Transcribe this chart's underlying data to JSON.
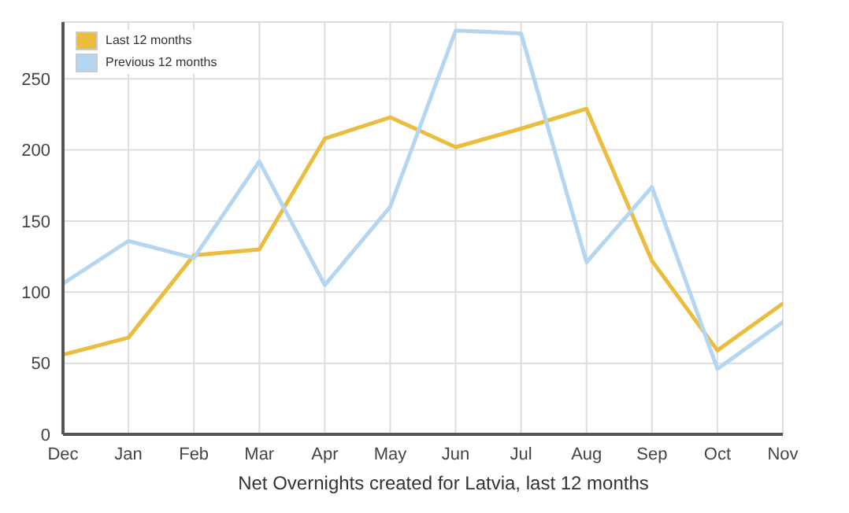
{
  "chart_data": {
    "type": "line",
    "categories": [
      "Dec",
      "Jan",
      "Feb",
      "Mar",
      "Apr",
      "May",
      "Jun",
      "Jul",
      "Aug",
      "Sep",
      "Oct",
      "Nov"
    ],
    "series": [
      {
        "name": "Last 12 months",
        "color": "#ebbd3f",
        "values": [
          56,
          68,
          126,
          130,
          208,
          223,
          202,
          215,
          229,
          122,
          59,
          92
        ]
      },
      {
        "name": "Previous 12 months",
        "color": "#b5d6f0",
        "values": [
          106,
          136,
          124,
          192,
          105,
          160,
          284,
          282,
          121,
          174,
          46,
          79
        ]
      }
    ],
    "ylim": [
      0,
      290
    ],
    "yticks": [
      0,
      50,
      100,
      150,
      200,
      250
    ],
    "grid": true,
    "legend": "top left",
    "marker": "none",
    "line_style": "solid",
    "annotations": [
      "Net Overnights created for Latvia, last 12 months"
    ]
  }
}
